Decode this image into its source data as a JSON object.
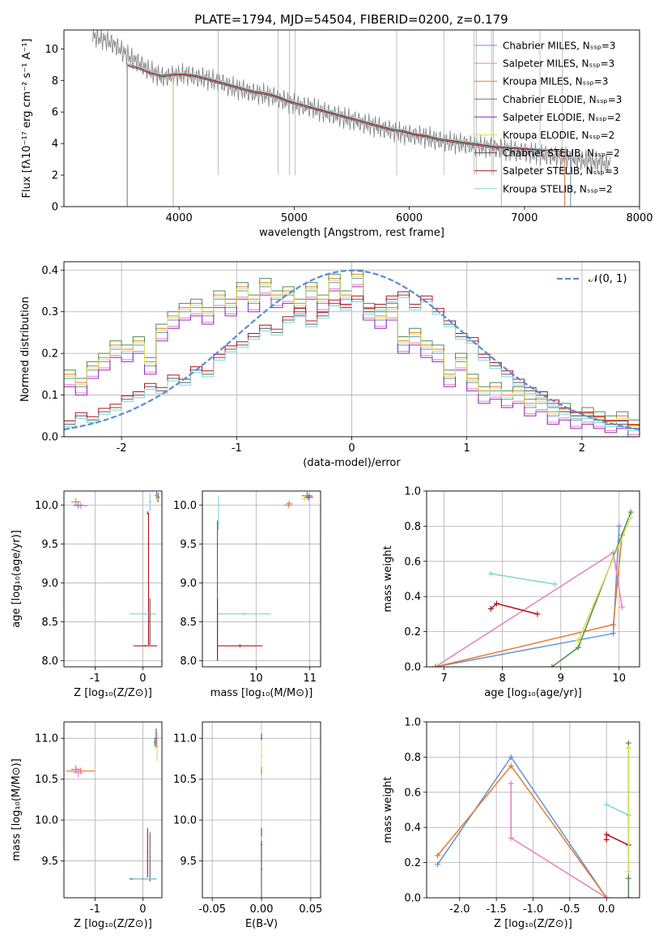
{
  "chart_data": [
    {
      "id": "spectrum",
      "type": "line",
      "title": "PLATE=1794, MJD=54504, FIBERID=0200, z=0.179",
      "xlabel": "wavelength [Angstrom, rest frame]",
      "ylabel": "Flux [fλ10⁻¹⁷ erg cm⁻² s⁻¹ A⁻¹]",
      "xlim": [
        3000,
        8000
      ],
      "ylim": [
        0,
        11.2
      ],
      "xticks": [
        4000,
        5000,
        6000,
        7000,
        8000
      ],
      "yticks": [
        0,
        2,
        4,
        6,
        8,
        10
      ],
      "grid": false,
      "legend_position": "upper right",
      "data_color": "#808080",
      "data_x": [
        3250,
        3350,
        3450,
        3550,
        3650,
        3750,
        3850,
        3950,
        4050,
        4150,
        4250,
        4350,
        4450,
        4550,
        4650,
        4750,
        4850,
        4950,
        5050,
        5150,
        5250,
        5350,
        5450,
        5550,
        5650,
        5750,
        5850,
        5950,
        6050,
        6150,
        6250,
        6350,
        6450,
        6550,
        6650,
        6750,
        6850,
        6950,
        7050,
        7150,
        7250,
        7350,
        7450,
        7550,
        7650,
        7750
      ],
      "data_y": [
        10.8,
        10.6,
        10.2,
        9.6,
        9.1,
        8.6,
        8.2,
        8.3,
        8.4,
        8.2,
        8.1,
        7.9,
        7.6,
        7.4,
        7.2,
        7.1,
        6.9,
        6.6,
        6.4,
        6.3,
        6.0,
        5.8,
        5.6,
        5.4,
        5.2,
        5.0,
        4.8,
        4.6,
        4.5,
        4.4,
        4.2,
        4.1,
        4.0,
        3.9,
        3.8,
        3.7,
        3.6,
        3.5,
        3.4,
        3.3,
        3.2,
        3.1,
        3.0,
        2.9,
        2.8,
        2.7
      ],
      "model_x": [
        3550,
        3650,
        3750,
        3850,
        3950,
        4050,
        4150,
        4250,
        4350,
        4450,
        4550,
        4650,
        4750,
        4850,
        4950,
        5050,
        5150,
        5250,
        5350,
        5450,
        5550,
        5650,
        5750,
        5850,
        5950,
        6050,
        6150,
        6250,
        6350,
        6450,
        6550,
        6650,
        6750
      ],
      "model_y": [
        9.0,
        8.8,
        8.5,
        8.3,
        8.4,
        8.4,
        8.3,
        8.1,
        7.9,
        7.7,
        7.5,
        7.3,
        7.2,
        7.0,
        6.7,
        6.5,
        6.3,
        6.1,
        5.9,
        5.7,
        5.5,
        5.3,
        5.1,
        4.9,
        4.8,
        4.6,
        4.5,
        4.3,
        4.2,
        4.1,
        4.0,
        3.9,
        3.8
      ],
      "series": [
        {
          "name": "Chabrier MILES, Nₛₛₚ=3",
          "color": "#6391d9",
          "start": 3550,
          "end": 7350
        },
        {
          "name": "Salpeter MILES, Nₛₛₚ=3",
          "color": "#e77fbe",
          "start": 3550,
          "end": 7350
        },
        {
          "name": "Kroupa MILES, Nₛₛₚ=3",
          "color": "#e57c2f",
          "start": 3550,
          "end": 7350
        },
        {
          "name": "Chabrier ELODIE, Nₛₛₚ=3",
          "color": "#4e8a58",
          "start": 3900,
          "end": 6800
        },
        {
          "name": "Salpeter ELODIE, Nₛₛₚ=2",
          "color": "#8b2fbf",
          "start": 3900,
          "end": 6800
        },
        {
          "name": "Kroupa ELODIE, Nₛₛₚ=2",
          "color": "#d4e157",
          "start": 3900,
          "end": 6800
        },
        {
          "name": "Chabrier STELIB, Nₛₛₚ=2",
          "color": "#5a5a5a",
          "start": 3250,
          "end": 7400
        },
        {
          "name": "Salpeter STELIB, Nₛₛₚ=3",
          "color": "#b5121b",
          "start": 3250,
          "end": 7400
        },
        {
          "name": "Kroupa STELIB, Nₛₛₚ=2",
          "color": "#7fd3d9",
          "start": 3250,
          "end": 7400
        }
      ]
    },
    {
      "id": "residuals",
      "type": "line",
      "xlabel": "(data-model)/error",
      "ylabel": "Normed distribution",
      "xlim": [
        -2.5,
        2.5
      ],
      "ylim": [
        0,
        0.42
      ],
      "xticks": [
        -2,
        -1,
        0,
        1,
        2
      ],
      "yticks": [
        0.0,
        0.1,
        0.2,
        0.3,
        0.4
      ],
      "grid": true,
      "legend_position": "upper right",
      "gaussian_label": "𝒩(0, 1)",
      "gaussian_color": "#5b8bd6",
      "bins_lo": [
        -2.5,
        -2.4,
        -2.3,
        -2.2,
        -2.1,
        -2.0,
        -1.9,
        -1.8,
        -1.7,
        -1.6,
        -1.5,
        -1.4,
        -1.3,
        -1.2,
        -1.1,
        -1.0,
        -0.9,
        -0.8,
        -0.7,
        -0.6,
        -0.5,
        -0.4,
        -0.3,
        -0.2,
        -0.1,
        0.0,
        0.1,
        0.2,
        0.3,
        0.4,
        0.5,
        0.6,
        0.7,
        0.8,
        0.9,
        1.0,
        1.1,
        1.2,
        1.3,
        1.4,
        1.5,
        1.6,
        1.7,
        1.8,
        1.9,
        2.0,
        2.1,
        2.2,
        2.3,
        2.4
      ],
      "group_a": {
        "names": [
          "Chabrier MILES",
          "Salpeter MILES",
          "Kroupa MILES",
          "Chabrier ELODIE",
          "Salpeter ELODIE",
          "Kroupa ELODIE"
        ],
        "colors": [
          "#6391d9",
          "#e77fbe",
          "#e57c2f",
          "#4e8a58",
          "#8b2fbf",
          "#d4e157"
        ],
        "values": [
          0.14,
          0.12,
          0.16,
          0.18,
          0.21,
          0.2,
          0.22,
          0.17,
          0.25,
          0.28,
          0.3,
          0.31,
          0.29,
          0.33,
          0.31,
          0.35,
          0.32,
          0.36,
          0.33,
          0.34,
          0.31,
          0.35,
          0.32,
          0.37,
          0.33,
          0.38,
          0.3,
          0.28,
          0.3,
          0.22,
          0.24,
          0.21,
          0.2,
          0.14,
          0.18,
          0.13,
          0.1,
          0.11,
          0.09,
          0.1,
          0.07,
          0.08,
          0.05,
          0.06,
          0.04,
          0.05,
          0.04,
          0.03,
          0.04,
          0.02
        ]
      },
      "group_b": {
        "names": [
          "Chabrier STELIB",
          "Salpeter STELIB",
          "Kroupa STELIB"
        ],
        "colors": [
          "#5a5a5a",
          "#b5121b",
          "#7fd3d9"
        ],
        "values": [
          0.03,
          0.05,
          0.04,
          0.06,
          0.07,
          0.09,
          0.1,
          0.12,
          0.11,
          0.14,
          0.13,
          0.16,
          0.15,
          0.19,
          0.21,
          0.22,
          0.24,
          0.26,
          0.25,
          0.28,
          0.3,
          0.27,
          0.29,
          0.32,
          0.31,
          0.33,
          0.3,
          0.31,
          0.33,
          0.34,
          0.31,
          0.33,
          0.3,
          0.27,
          0.24,
          0.23,
          0.19,
          0.17,
          0.15,
          0.13,
          0.11,
          0.1,
          0.08,
          0.06,
          0.05,
          0.05,
          0.04,
          0.03,
          0.03,
          0.02
        ]
      }
    },
    {
      "id": "age-vs-Z",
      "type": "scatter",
      "xlabel": "Z [log₁₀(Z/Z⊙)]",
      "ylabel": "age  [log₁₀(age/yr)]",
      "xlim": [
        -1.65,
        0.4
      ],
      "ylim": [
        7.92,
        10.18
      ],
      "xticks": [
        -1,
        0
      ],
      "yticks": [
        8.0,
        8.5,
        9.0,
        9.5,
        10.0
      ],
      "grid": true
    },
    {
      "id": "age-vs-mass",
      "type": "scatter",
      "xlabel": "mass [log₁₀(M/M⊙)]",
      "ylabel": "",
      "xlim": [
        9.0,
        11.2
      ],
      "ylim": [
        7.92,
        10.18
      ],
      "xticks": [
        10,
        11
      ],
      "yticks": [
        8.0,
        8.5,
        9.0,
        9.5,
        10.0
      ],
      "grid": true
    },
    {
      "id": "weight-vs-age",
      "type": "line",
      "xlabel": "age  [log₁₀(age/yr)]",
      "ylabel": "mass weight",
      "xlim": [
        6.7,
        10.35
      ],
      "ylim": [
        0.0,
        1.0
      ],
      "xticks": [
        7,
        8,
        9,
        10
      ],
      "yticks": [
        0.0,
        0.2,
        0.4,
        0.6,
        0.8,
        1.0
      ],
      "grid": true
    },
    {
      "id": "mass-vs-Z",
      "type": "scatter",
      "xlabel": "Z [log₁₀(Z/Z⊙)]",
      "ylabel": "mass [log₁₀(M/M⊙)]",
      "xlim": [
        -1.65,
        0.4
      ],
      "ylim": [
        9.05,
        11.2
      ],
      "xticks": [
        -1,
        0
      ],
      "yticks": [
        9.5,
        10.0,
        10.5,
        11.0
      ],
      "grid": true
    },
    {
      "id": "mass-vs-ebv",
      "type": "scatter",
      "xlabel": "E(B-V)",
      "ylabel": "",
      "xlim": [
        -0.06,
        0.06
      ],
      "ylim": [
        9.05,
        11.2
      ],
      "xticks": [
        -0.05,
        0.0,
        0.05
      ],
      "yticks": [
        9.5,
        10.0,
        10.5,
        11.0
      ],
      "grid": true
    },
    {
      "id": "weight-vs-Z",
      "type": "line",
      "xlabel": "Z [log₁₀(Z/Z⊙)]",
      "ylabel": "mass weight",
      "xlim": [
        -2.45,
        0.45
      ],
      "ylim": [
        0.0,
        1.0
      ],
      "xticks": [
        -2.0,
        -1.5,
        -1.0,
        -0.5,
        0.0
      ],
      "yticks": [
        0.0,
        0.2,
        0.4,
        0.6,
        0.8,
        1.0
      ],
      "grid": true
    }
  ]
}
